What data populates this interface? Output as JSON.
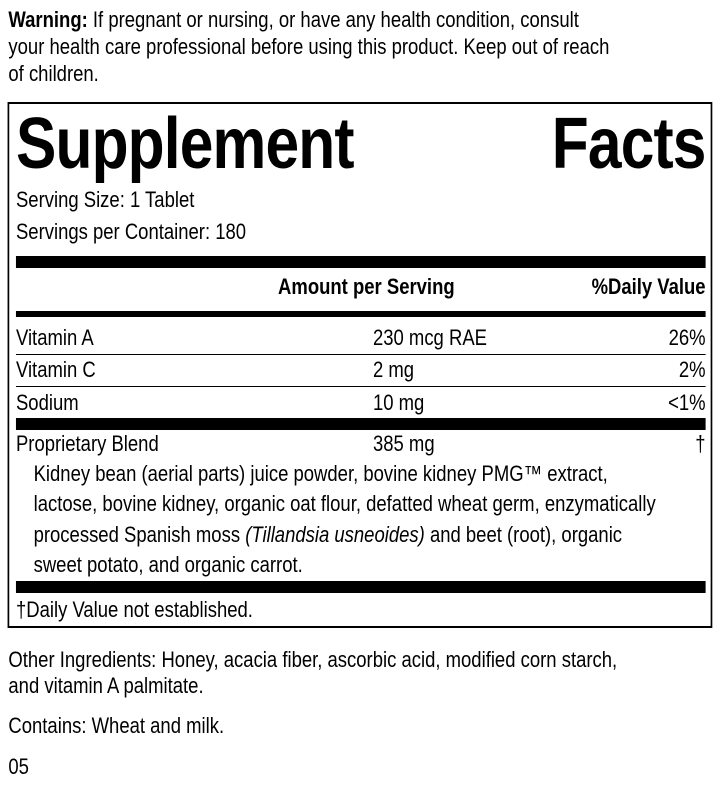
{
  "warning": {
    "label": "Warning:",
    "lines": [
      " If pregnant or nursing, or have any health condition, consult",
      "your health care professional before using this product. Keep out of reach",
      "of children."
    ]
  },
  "facts": {
    "title_word1": "Supplement",
    "title_word2": "Facts",
    "serving_size": "Serving Size: 1 Tablet",
    "servings_per_container": "Servings per Container: 180",
    "header_amount": "Amount per Serving",
    "header_dv": "%Daily Value",
    "rows": [
      {
        "name": "Vitamin A",
        "amount": "230 mcg RAE",
        "dv": "26%"
      },
      {
        "name": "Vitamin C",
        "amount": "2 mg",
        "dv": "2%"
      },
      {
        "name": "Sodium",
        "amount": "10 mg",
        "dv": "<1%"
      }
    ],
    "blend": {
      "name": "Proprietary Blend",
      "amount": "385 mg",
      "dv": "†",
      "line1": "Kidney bean (aerial parts) juice powder, bovine kidney PMG™ extract,",
      "line2": "lactose, bovine kidney, organic oat flour, defatted wheat germ, enzymatically",
      "line3a": "processed Spanish moss ",
      "line3b": "(Tillandsia usneoides)",
      "line3c": " and beet (root), organic",
      "line4": "sweet potato, and organic carrot."
    },
    "footnote": "†Daily Value not established."
  },
  "other_ingredients": [
    "Other Ingredients: Honey, acacia fiber, ascorbic acid, modified corn starch,",
    "and vitamin A palmitate."
  ],
  "contains": "Contains: Wheat and milk.",
  "code": "05"
}
